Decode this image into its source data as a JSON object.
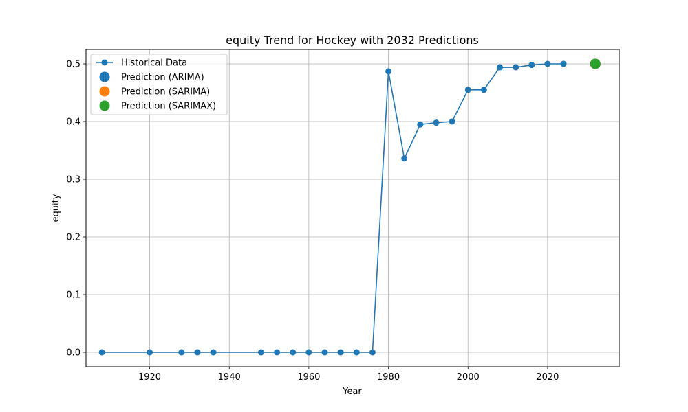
{
  "chart_data": {
    "type": "line",
    "title": "equity Trend for Hockey with 2032 Predictions",
    "xlabel": "Year",
    "ylabel": "equity",
    "xlim": [
      1904,
      2038
    ],
    "ylim": [
      -0.025,
      0.525
    ],
    "xticks": [
      1920,
      1940,
      1960,
      1980,
      2000,
      2020
    ],
    "yticks": [
      0.0,
      0.1,
      0.2,
      0.3,
      0.4,
      0.5
    ],
    "grid": true,
    "legend_position": "upper-left",
    "series": [
      {
        "name": "Historical Data",
        "style": "line-marker",
        "color": "#1f77b4",
        "x": [
          1908,
          1920,
          1928,
          1932,
          1936,
          1948,
          1952,
          1956,
          1960,
          1964,
          1968,
          1972,
          1976,
          1980,
          1984,
          1988,
          1992,
          1996,
          2000,
          2004,
          2008,
          2012,
          2016,
          2020,
          2024
        ],
        "y": [
          0.0,
          0.0,
          0.0,
          0.0,
          0.0,
          0.0,
          0.0,
          0.0,
          0.0,
          0.0,
          0.0,
          0.0,
          0.0,
          0.487,
          0.336,
          0.395,
          0.398,
          0.4,
          0.455,
          0.455,
          0.494,
          0.494,
          0.498,
          0.5,
          0.5
        ]
      },
      {
        "name": "Prediction (ARIMA)",
        "style": "point",
        "color": "#1f77b4",
        "x": [
          2032
        ],
        "y": [
          0.5
        ]
      },
      {
        "name": "Prediction (SARIMA)",
        "style": "point",
        "color": "#ff7f0e",
        "x": [
          2032
        ],
        "y": [
          0.5
        ]
      },
      {
        "name": "Prediction (SARIMAX)",
        "style": "point",
        "color": "#2ca02c",
        "x": [
          2032
        ],
        "y": [
          0.5
        ]
      }
    ]
  }
}
